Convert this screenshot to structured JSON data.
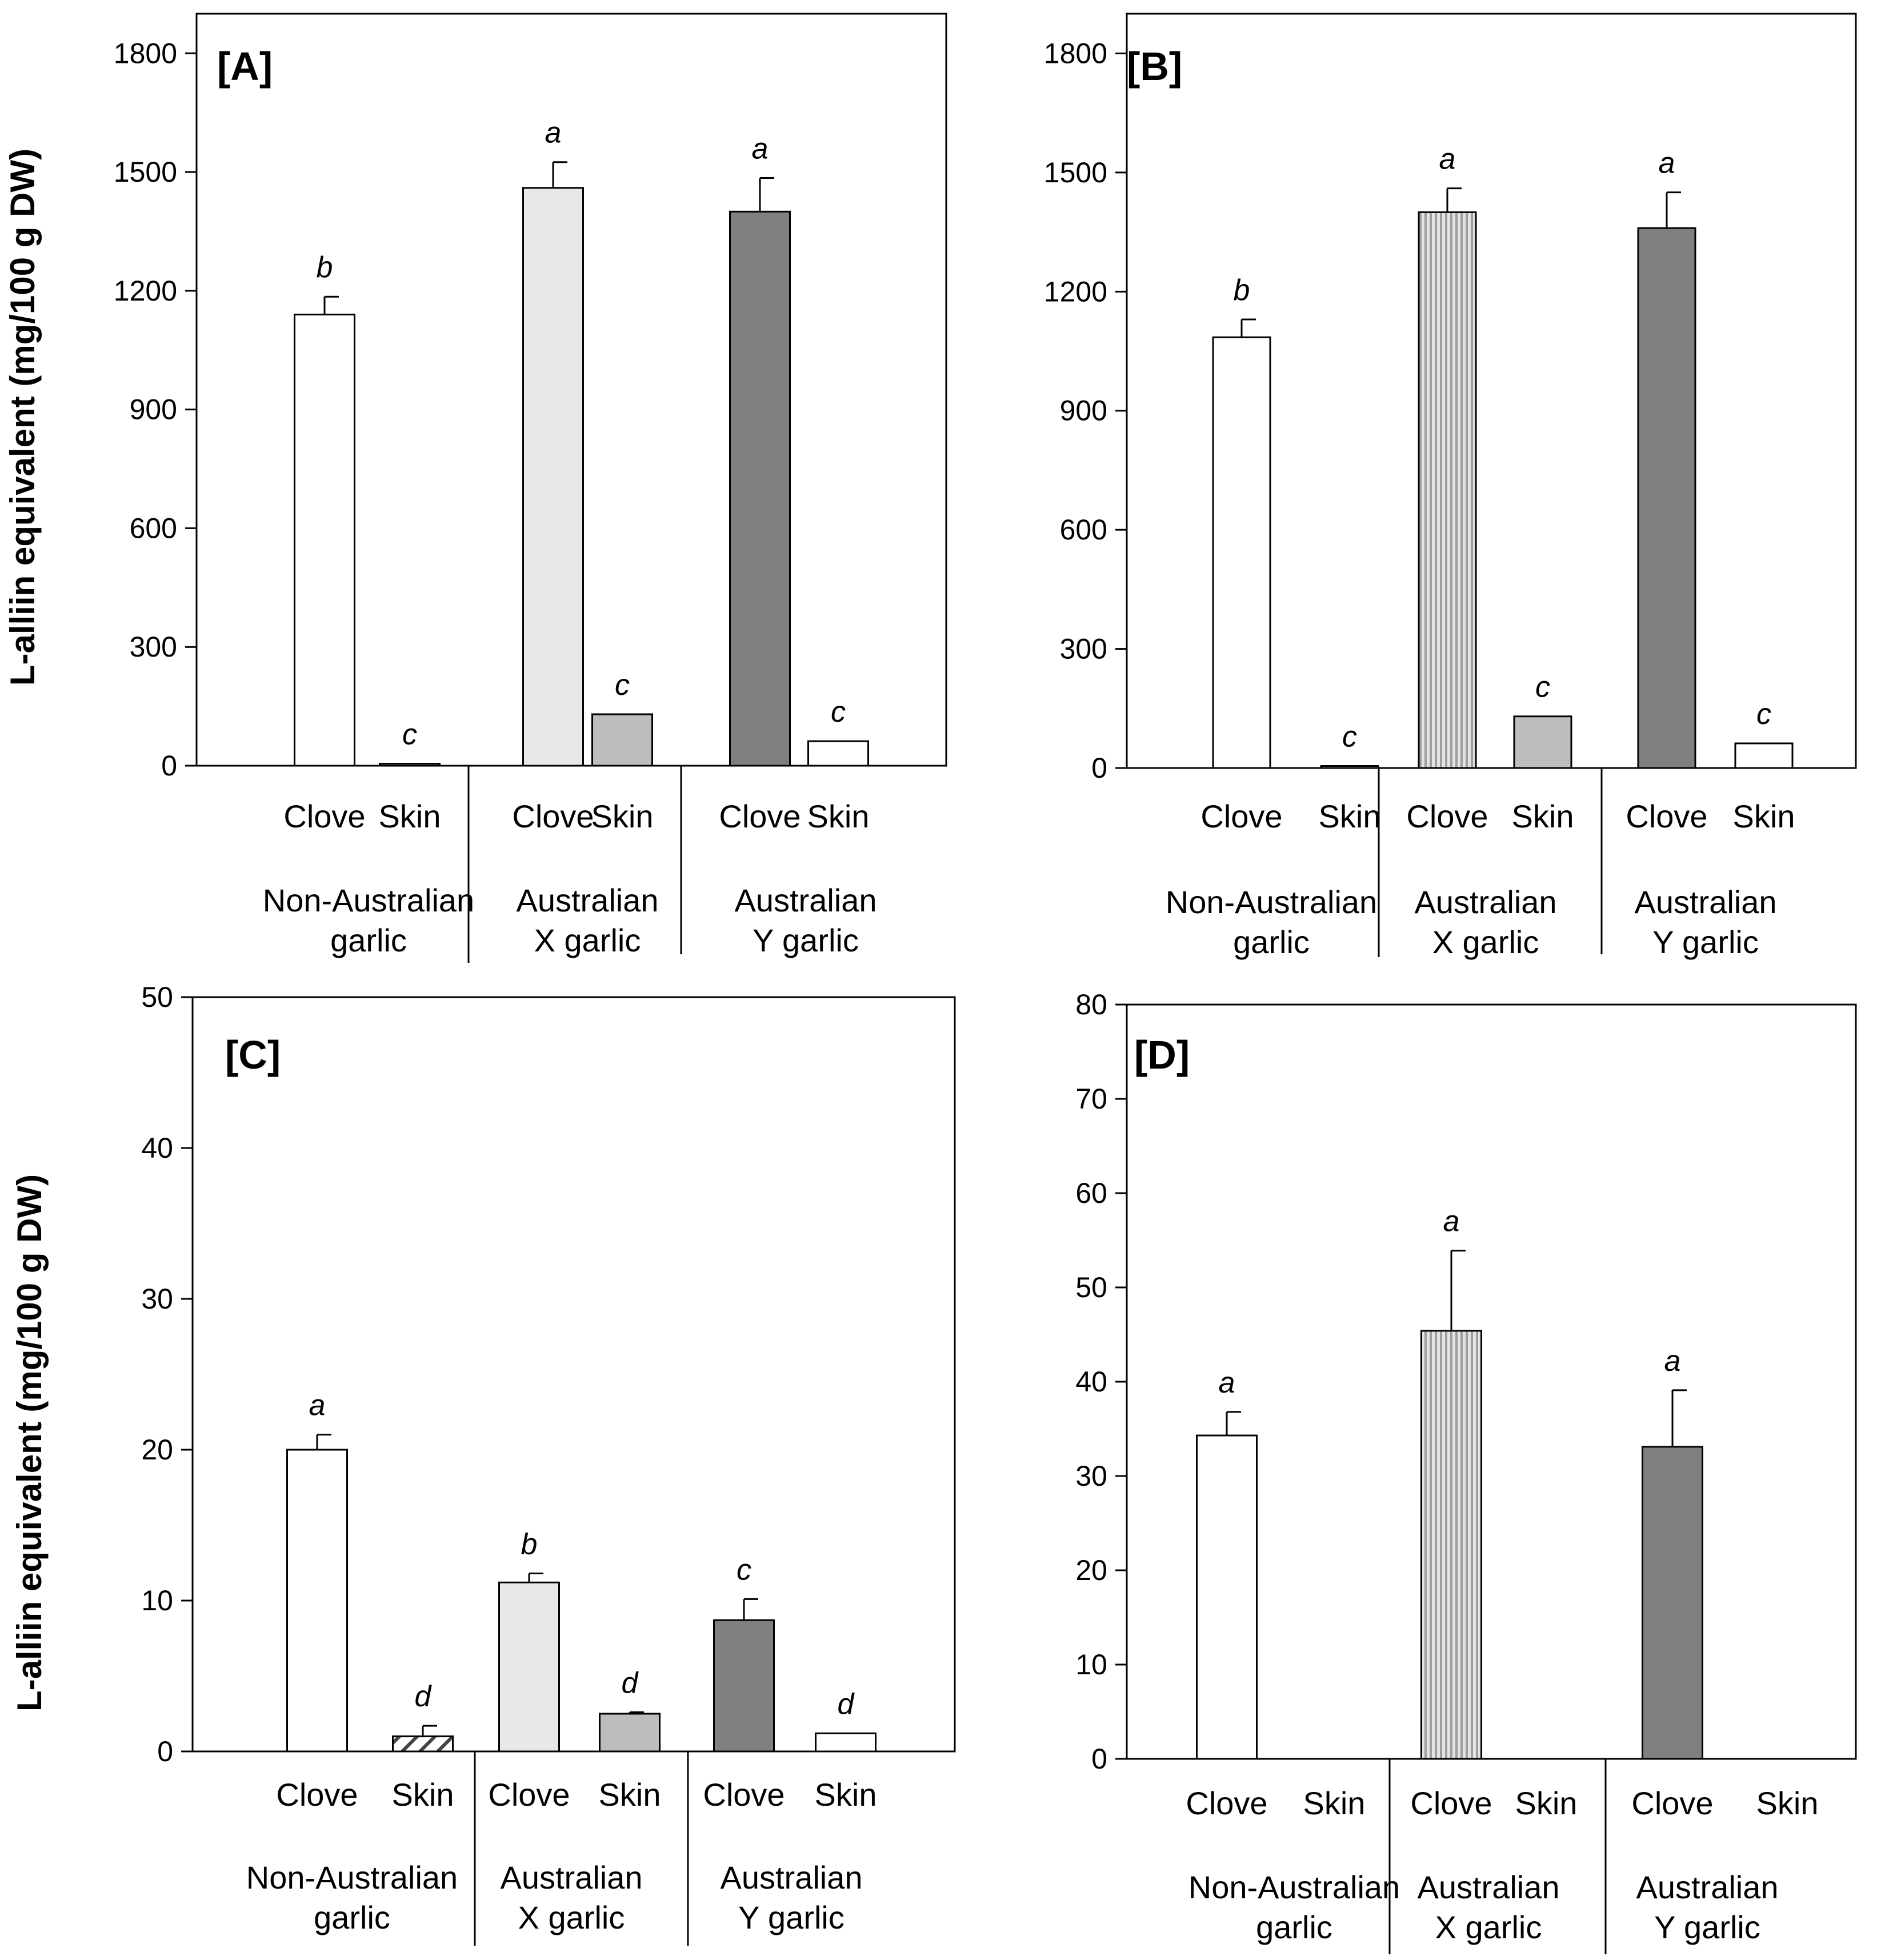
{
  "y_axis_label": "L-alliin equivalent (mg/100 g DW)",
  "colors": {
    "non_australian_clove": "#ffffff",
    "australian_x_clove": "#e8e8e8",
    "australian_x_clove_striped": "#b8b8b8",
    "australian_x_skin": "#bdbdbd",
    "australian_y_clove": "#808080",
    "australian_y_skin": "#ffffff",
    "non_australian_skin_hatched": "#555555"
  },
  "chart_data": [
    {
      "type": "bar",
      "title": "[A]",
      "ylabel": "L-alliin equivalent (mg/100 g DW)",
      "ylim": [
        0,
        1900
      ],
      "yticks": [
        "0",
        "300",
        "600",
        "900",
        "1200",
        "1500",
        "1800"
      ],
      "categories": [
        "Clove",
        "Skin",
        "Clove",
        "Skin",
        "Clove",
        "Skin"
      ],
      "groups": [
        {
          "line1": "Non-Australian",
          "line2": "garlic"
        },
        {
          "line1": "Australian",
          "line2": "X garlic"
        },
        {
          "line1": "Australian",
          "line2": "Y garlic"
        }
      ],
      "values": [
        1140,
        5,
        1460,
        130,
        1400,
        62
      ],
      "errors": [
        45,
        0,
        65,
        0,
        85,
        0
      ],
      "letters": [
        "b",
        "c",
        "a",
        "c",
        "a",
        "c"
      ]
    },
    {
      "type": "bar",
      "title": "[B]",
      "ylabel": "",
      "ylim": [
        0,
        1900
      ],
      "yticks": [
        "0",
        "300",
        "600",
        "900",
        "1200",
        "1500",
        "1800"
      ],
      "categories": [
        "Clove",
        "Skin",
        "Clove",
        "Skin",
        "Clove",
        "Skin"
      ],
      "groups": [
        {
          "line1": "Non-Australian",
          "line2": "garlic"
        },
        {
          "line1": "Australian",
          "line2": "X garlic"
        },
        {
          "line1": "Australian",
          "line2": "Y garlic"
        }
      ],
      "values": [
        1085,
        5,
        1400,
        130,
        1360,
        62
      ],
      "errors": [
        45,
        0,
        60,
        0,
        90,
        0
      ],
      "letters": [
        "b",
        "c",
        "a",
        "c",
        "a",
        "c"
      ]
    },
    {
      "type": "bar",
      "title": "[C]",
      "ylabel": "L-alliin equivalent (mg/100 g DW)",
      "ylim": [
        0,
        50
      ],
      "yticks": [
        "0",
        "10",
        "20",
        "30",
        "40",
        "50"
      ],
      "categories": [
        "Clove",
        "Skin",
        "Clove",
        "Skin",
        "Clove",
        "Skin"
      ],
      "groups": [
        {
          "line1": "Non-Australian",
          "line2": "garlic"
        },
        {
          "line1": "Australian",
          "line2": "X garlic"
        },
        {
          "line1": "Australian",
          "line2": "Y garlic"
        }
      ],
      "values": [
        20,
        1,
        11.2,
        2.5,
        8.7,
        1.2
      ],
      "errors": [
        1,
        0.7,
        0.6,
        0.1,
        1.4,
        0
      ],
      "letters": [
        "a",
        "d",
        "b",
        "d",
        "c",
        "d"
      ]
    },
    {
      "type": "bar",
      "title": "[D]",
      "ylabel": "",
      "ylim": [
        0,
        80
      ],
      "yticks": [
        "0",
        "10",
        "20",
        "30",
        "40",
        "50",
        "60",
        "70",
        "80"
      ],
      "categories": [
        "Clove",
        "Skin",
        "Clove",
        "Skin",
        "Clove",
        "Skin"
      ],
      "groups": [
        {
          "line1": "Non-Australian",
          "line2": "garlic"
        },
        {
          "line1": "Australian",
          "line2": "X garlic"
        },
        {
          "line1": "Australian",
          "line2": "Y garlic"
        }
      ],
      "values": [
        34.3,
        0,
        45.4,
        0,
        33.1,
        0
      ],
      "errors": [
        2.5,
        0,
        8.5,
        0,
        6,
        0
      ],
      "letters": [
        "a",
        "",
        "a",
        "",
        "a",
        ""
      ]
    }
  ]
}
